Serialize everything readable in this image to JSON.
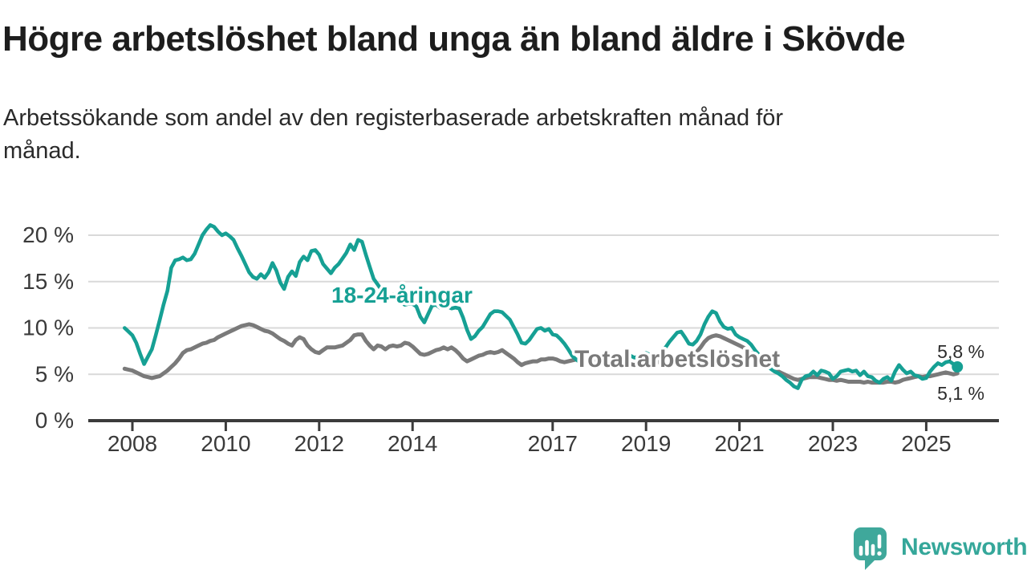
{
  "header": {
    "title": "Högre arbetslöshet bland unga än bland äldre i Skövde",
    "subtitle": "Arbetssökande som andel av den registerbaserade arbetskraften månad för månad."
  },
  "colors": {
    "young_line": "#16a094",
    "total_line": "#7a7a7a",
    "grid": "#d9d9d9",
    "axis": "#3b3b3b",
    "tick_text": "#3a3a3a",
    "end_label_text": "#2d2d2d",
    "logo_teal": "#3fa89b"
  },
  "chart_data": {
    "type": "line",
    "title": "Högre arbetslöshet bland unga än bland äldre i Skövde",
    "subtitle": "Arbetssökande som andel av den registerbaserade arbetskraften månad för månad.",
    "x_unit": "month",
    "x_start": "2007-11",
    "x_end": "2025-09",
    "x_ticks": [
      2008,
      2010,
      2012,
      2014,
      2017,
      2019,
      2021,
      2023,
      2025
    ],
    "y_ticks": [
      {
        "value": 0,
        "label": "0 %"
      },
      {
        "value": 5,
        "label": "5 %"
      },
      {
        "value": 10,
        "label": "10 %"
      },
      {
        "value": 15,
        "label": "15 %"
      },
      {
        "value": 20,
        "label": "20 %"
      }
    ],
    "ylim": [
      0,
      22.5
    ],
    "grid": "horizontal-only",
    "legend_position": "inline-labels",
    "series": [
      {
        "name": "18-24-åringar",
        "color": "#16a094",
        "end_label": "5,8 %",
        "end_value": 5.8,
        "values": [
          10.0,
          9.6,
          9.2,
          8.4,
          7.2,
          6.1,
          6.9,
          7.7,
          9.2,
          10.8,
          12.5,
          14.0,
          16.5,
          17.3,
          17.4,
          17.6,
          17.3,
          17.4,
          18.0,
          19.0,
          20.0,
          20.6,
          21.1,
          20.9,
          20.4,
          20.0,
          20.2,
          19.9,
          19.5,
          18.6,
          17.8,
          16.9,
          16.0,
          15.5,
          15.3,
          15.8,
          15.4,
          16.0,
          17.0,
          16.2,
          14.9,
          14.2,
          15.5,
          16.1,
          15.6,
          17.1,
          17.7,
          17.3,
          18.3,
          18.4,
          17.9,
          16.9,
          16.4,
          15.9,
          16.5,
          16.9,
          17.5,
          18.1,
          19.0,
          18.4,
          19.5,
          19.3,
          17.9,
          16.6,
          15.3,
          14.7,
          14.1,
          13.7,
          13.3,
          13.6,
          13.1,
          12.8,
          12.5,
          12.6,
          12.6,
          12.3,
          11.2,
          10.6,
          11.5,
          12.4,
          12.5,
          12.2,
          12.3,
          12.3,
          12.1,
          12.2,
          12.1,
          11.1,
          9.8,
          8.8,
          9.1,
          9.7,
          10.1,
          10.8,
          11.5,
          11.8,
          11.8,
          11.7,
          11.3,
          10.9,
          10.1,
          9.3,
          8.4,
          8.3,
          8.7,
          9.3,
          9.9,
          10.0,
          9.7,
          9.9,
          9.3,
          9.2,
          8.8,
          8.3,
          7.7,
          7.0,
          6.6,
          6.3,
          6.4,
          6.6,
          6.8,
          7.0,
          7.1,
          6.8,
          6.5,
          6.3,
          6.2,
          6.4,
          6.8,
          7.2,
          7.0,
          6.8,
          6.9,
          7.1,
          7.3,
          7.1,
          6.9,
          7.1,
          7.4,
          7.9,
          8.5,
          9.0,
          9.5,
          9.6,
          9.0,
          8.3,
          8.2,
          8.6,
          9.3,
          10.4,
          11.2,
          11.8,
          11.6,
          10.7,
          10.1,
          9.9,
          10.0,
          9.3,
          9.0,
          8.8,
          8.6,
          8.2,
          7.6,
          7.1,
          6.6,
          6.1,
          5.6,
          5.3,
          5.1,
          4.8,
          4.4,
          4.1,
          3.7,
          3.5,
          4.4,
          4.8,
          4.9,
          5.3,
          4.9,
          5.4,
          5.3,
          5.1,
          4.5,
          4.8,
          5.3,
          5.4,
          5.5,
          5.3,
          5.4,
          4.9,
          5.3,
          4.8,
          4.7,
          4.3,
          4.1,
          4.5,
          4.7,
          4.3,
          5.3,
          6.0,
          5.5,
          5.1,
          5.3,
          4.9,
          4.8,
          4.5,
          4.6,
          5.3,
          5.8,
          6.2,
          6.0,
          6.3,
          6.4,
          6.1,
          5.8
        ]
      },
      {
        "name": "Total arbetslöshet",
        "color": "#7a7a7a",
        "end_label": "5,1 %",
        "end_value": 5.1,
        "values": [
          5.6,
          5.5,
          5.4,
          5.2,
          5.0,
          4.8,
          4.7,
          4.6,
          4.7,
          4.8,
          5.1,
          5.4,
          5.8,
          6.2,
          6.7,
          7.3,
          7.6,
          7.7,
          7.9,
          8.1,
          8.3,
          8.4,
          8.6,
          8.7,
          9.0,
          9.2,
          9.4,
          9.6,
          9.8,
          10.0,
          10.2,
          10.3,
          10.4,
          10.3,
          10.1,
          9.9,
          9.7,
          9.6,
          9.4,
          9.1,
          8.8,
          8.6,
          8.3,
          8.1,
          8.7,
          9.0,
          8.8,
          8.1,
          7.7,
          7.4,
          7.3,
          7.6,
          7.9,
          7.9,
          7.9,
          8.0,
          8.1,
          8.4,
          8.7,
          9.2,
          9.3,
          9.3,
          8.6,
          8.1,
          7.7,
          8.1,
          8.0,
          7.7,
          8.0,
          8.1,
          8.0,
          8.1,
          8.4,
          8.3,
          8.0,
          7.6,
          7.2,
          7.1,
          7.2,
          7.4,
          7.6,
          7.7,
          7.9,
          7.7,
          7.9,
          7.6,
          7.2,
          6.7,
          6.4,
          6.6,
          6.8,
          7.0,
          7.1,
          7.3,
          7.4,
          7.3,
          7.4,
          7.6,
          7.3,
          7.0,
          6.7,
          6.3,
          6.0,
          6.2,
          6.3,
          6.4,
          6.4,
          6.6,
          6.6,
          6.7,
          6.7,
          6.6,
          6.4,
          6.3,
          6.4,
          6.5,
          6.6,
          6.5,
          6.4,
          6.3,
          6.4,
          6.5,
          6.4,
          6.2,
          6.1,
          6.0,
          5.9,
          6.0,
          6.1,
          6.2,
          6.1,
          6.0,
          6.1,
          6.2,
          6.3,
          6.2,
          6.2,
          6.3,
          6.4,
          6.6,
          6.8,
          6.9,
          6.9,
          7.0,
          7.0,
          7.1,
          7.2,
          7.4,
          7.9,
          8.5,
          8.9,
          9.1,
          9.2,
          9.1,
          8.9,
          8.7,
          8.5,
          8.3,
          8.1,
          7.9,
          7.6,
          7.3,
          7.0,
          6.7,
          6.4,
          6.1,
          5.8,
          5.5,
          5.3,
          5.1,
          4.9,
          4.7,
          4.5,
          4.4,
          4.5,
          4.6,
          4.7,
          4.7,
          4.7,
          4.6,
          4.5,
          4.4,
          4.4,
          4.3,
          4.4,
          4.3,
          4.2,
          4.2,
          4.2,
          4.2,
          4.1,
          4.2,
          4.1,
          4.1,
          4.1,
          4.1,
          4.2,
          4.2,
          4.1,
          4.2,
          4.4,
          4.5,
          4.6,
          4.7,
          4.8,
          4.7,
          4.8,
          4.8,
          4.9,
          5.0,
          5.1,
          5.2,
          5.1,
          5.0,
          5.1
        ]
      }
    ]
  },
  "logo": {
    "text": "Newsworthy"
  }
}
